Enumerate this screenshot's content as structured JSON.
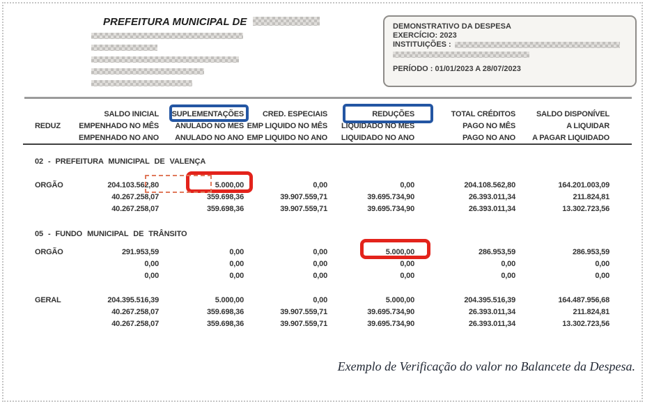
{
  "colors": {
    "highlight_red": "#e3231b",
    "highlight_blue": "#2456a3",
    "dashed_red": "#e0795b"
  },
  "letterhead": {
    "title_prefix": "PREFEITURA MUNICIPAL DE"
  },
  "info_box": {
    "report_title": "DEMONSTRATIVO DA DESPESA",
    "exercise": "EXERCÍCIO: 2023",
    "institutions_label": "INSTITUIÇÕES :",
    "period": "PERÍODO : 01/01/2023 A 28/07/2023"
  },
  "table": {
    "header": [
      {
        "lines": [
          "",
          "REDUZ",
          ""
        ]
      },
      {
        "lines": [
          "SALDO INICIAL",
          "EMPENHADO NO MÊS",
          "EMPENHADO NO ANO"
        ]
      },
      {
        "lines": [
          "SUPLEMENTAÇÕES",
          "ANULADO NO MES",
          "ANULADO NO ANO"
        ]
      },
      {
        "lines": [
          "CRED. ESPECIAIS",
          "EMP LIQUIDO NO MÊS",
          "EMP LIQUIDO NO ANO"
        ]
      },
      {
        "lines": [
          "REDUÇÕES",
          "LIQUIDADO NO MES",
          "LIQUIDADO NO ANO"
        ]
      },
      {
        "lines": [
          "TOTAL CRÉDITOS",
          "PAGO NO MÊS",
          "PAGO NO ANO"
        ]
      },
      {
        "lines": [
          "SALDO DISPONÍVEL",
          "A LIQUIDAR",
          "A PAGAR LIQUIDADO"
        ]
      }
    ],
    "section_titles": {
      "s0": "02 - PREFEITURA MUNICIPAL DE VALENÇA",
      "s1": "05 - FUNDO MUNICIPAL DE TRÂNSITO"
    },
    "groups": [
      {
        "label": "ORGÃO",
        "lines": [
          [
            "204.103.562,80",
            "5.000,00",
            "0,00",
            "0,00",
            "204.108.562,80",
            "164.201.003,09"
          ],
          [
            "40.267.258,07",
            "359.698,36",
            "39.907.559,71",
            "39.695.734,90",
            "26.393.011,34",
            "211.824,81"
          ],
          [
            "40.267.258,07",
            "359.698,36",
            "39.907.559,71",
            "39.695.734,90",
            "26.393.011,34",
            "13.302.723,56"
          ]
        ]
      },
      {
        "label": "ORGÃO",
        "lines": [
          [
            "291.953,59",
            "0,00",
            "0,00",
            "5.000,00",
            "286.953,59",
            "286.953,59"
          ],
          [
            "0,00",
            "0,00",
            "0,00",
            "0,00",
            "0,00",
            "0,00"
          ],
          [
            "0,00",
            "0,00",
            "0,00",
            "0,00",
            "0,00",
            "0,00"
          ]
        ]
      },
      {
        "label": "GERAL",
        "lines": [
          [
            "204.395.516,39",
            "5.000,00",
            "0,00",
            "5.000,00",
            "204.395.516,39",
            "164.487.956,68"
          ],
          [
            "40.267.258,07",
            "359.698,36",
            "39.907.559,71",
            "39.695.734,90",
            "26.393.011,34",
            "211.824,81"
          ],
          [
            "40.267.258,07",
            "359.698,36",
            "39.907.559,71",
            "39.695.734,90",
            "26.393.011,34",
            "13.302.723,56"
          ]
        ]
      }
    ]
  },
  "caption": "Exemplo de Verificação do valor no Balancete da Despesa."
}
